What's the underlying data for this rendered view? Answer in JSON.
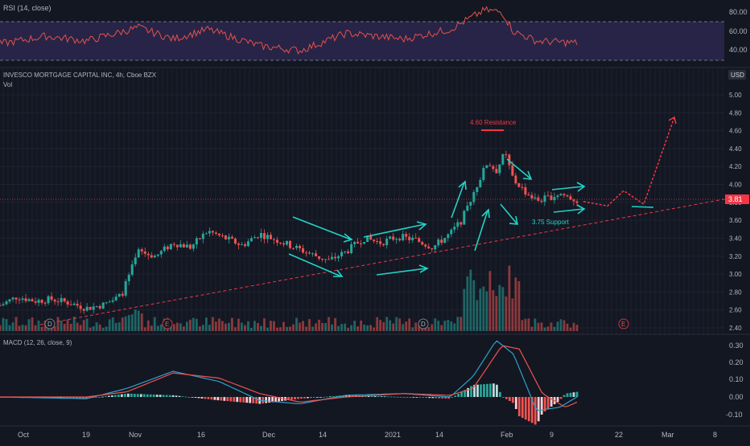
{
  "colors": {
    "background": "#131722",
    "grid": "#1f2330",
    "vgrid": "#2a2e39",
    "up": "#26a69a",
    "down": "#ef5350",
    "text": "#b2b5be",
    "rsi_line": "#e2524b",
    "rsi_band": "#3b2f66",
    "cyan": "#22d3c5",
    "red_annotation": "#f23645",
    "macd": "#2ea0c9",
    "signal": "#ef5350",
    "price_tag": "#f23645"
  },
  "rsi_panel": {
    "label": "RSI (14, close)",
    "ticks": [
      "80.00",
      "60.00",
      "40.00"
    ],
    "levels": [
      70,
      30
    ]
  },
  "price_panel": {
    "title": "INVESCO MORTGAGE CAPITAL INC, 4h, Cboe BZX",
    "vol_label": "Vol",
    "currency": "USD",
    "current_price": "3.81",
    "resistance_label": "4.60 Resistance",
    "support_label": "3.75 Support",
    "event_markers": [
      "D",
      "E",
      "D",
      "E"
    ],
    "ticks": [
      "5.00",
      "4.80",
      "4.60",
      "4.40",
      "4.20",
      "4.00",
      "3.80",
      "3.60",
      "3.40",
      "3.20",
      "3.00",
      "2.80",
      "2.60",
      "2.40"
    ]
  },
  "macd_panel": {
    "label": "MACD (12, 26, close, 9)",
    "ticks": [
      "0.30",
      "0.20",
      "0.10",
      "0.00",
      "-0.10"
    ]
  },
  "time_axis": [
    "Oct",
    "19",
    "Nov",
    "16",
    "Dec",
    "14",
    "2021",
    "14",
    "Feb",
    "9",
    "22",
    "Mar",
    "8"
  ],
  "chart_data": {
    "type": "candlestick",
    "title": "INVESCO MORTGAGE CAPITAL INC, 4h, Cboe BZX",
    "y_range": [
      2.4,
      5.1
    ],
    "rsi_range": [
      30,
      85
    ],
    "macd_range": [
      -0.13,
      0.35
    ],
    "current_price": 3.81,
    "resistance": 4.6,
    "support": 3.75,
    "close_path": [
      [
        0,
        2.65
      ],
      [
        0.03,
        2.75
      ],
      [
        0.06,
        2.7
      ],
      [
        0.09,
        2.72
      ],
      [
        0.12,
        2.68
      ],
      [
        0.15,
        2.62
      ],
      [
        0.18,
        2.66
      ],
      [
        0.21,
        2.76
      ],
      [
        0.24,
        3.25
      ],
      [
        0.27,
        3.2
      ],
      [
        0.3,
        3.35
      ],
      [
        0.33,
        3.3
      ],
      [
        0.36,
        3.48
      ],
      [
        0.39,
        3.4
      ],
      [
        0.42,
        3.32
      ],
      [
        0.45,
        3.45
      ],
      [
        0.48,
        3.38
      ],
      [
        0.51,
        3.3
      ],
      [
        0.54,
        3.22
      ],
      [
        0.57,
        3.15
      ],
      [
        0.6,
        3.25
      ],
      [
        0.63,
        3.4
      ],
      [
        0.66,
        3.35
      ],
      [
        0.69,
        3.42
      ],
      [
        0.72,
        3.38
      ],
      [
        0.75,
        3.3
      ],
      [
        0.78,
        3.45
      ],
      [
        0.8,
        3.6
      ],
      [
        0.82,
        3.9
      ],
      [
        0.845,
        4.25
      ],
      [
        0.86,
        4.15
      ],
      [
        0.875,
        4.35
      ],
      [
        0.89,
        4.05
      ],
      [
        0.91,
        3.92
      ],
      [
        0.93,
        3.82
      ],
      [
        0.95,
        3.85
      ],
      [
        0.97,
        3.9
      ],
      [
        1.0,
        3.82
      ]
    ],
    "rsi_path": [
      [
        0,
        47
      ],
      [
        0.08,
        55
      ],
      [
        0.15,
        50
      ],
      [
        0.24,
        64
      ],
      [
        0.3,
        52
      ],
      [
        0.36,
        62
      ],
      [
        0.45,
        45
      ],
      [
        0.52,
        40
      ],
      [
        0.6,
        58
      ],
      [
        0.7,
        52
      ],
      [
        0.78,
        62
      ],
      [
        0.84,
        82
      ],
      [
        0.87,
        80
      ],
      [
        0.89,
        60
      ],
      [
        0.93,
        50
      ],
      [
        1.0,
        48
      ]
    ],
    "macd_path": [
      [
        0,
        0.0
      ],
      [
        0.15,
        -0.01
      ],
      [
        0.22,
        0.05
      ],
      [
        0.3,
        0.15
      ],
      [
        0.38,
        0.09
      ],
      [
        0.45,
        -0.02
      ],
      [
        0.52,
        -0.04
      ],
      [
        0.6,
        0.01
      ],
      [
        0.7,
        0.02
      ],
      [
        0.78,
        0.0
      ],
      [
        0.82,
        0.12
      ],
      [
        0.86,
        0.33
      ],
      [
        0.89,
        0.25
      ],
      [
        0.93,
        -0.08
      ],
      [
        0.97,
        -0.06
      ],
      [
        1.0,
        0.0
      ]
    ],
    "signal_path": [
      [
        0,
        0.0
      ],
      [
        0.15,
        0.0
      ],
      [
        0.22,
        0.03
      ],
      [
        0.3,
        0.14
      ],
      [
        0.38,
        0.11
      ],
      [
        0.45,
        0.02
      ],
      [
        0.52,
        -0.03
      ],
      [
        0.6,
        0.0
      ],
      [
        0.7,
        0.02
      ],
      [
        0.78,
        0.01
      ],
      [
        0.82,
        0.05
      ],
      [
        0.87,
        0.3
      ],
      [
        0.9,
        0.28
      ],
      [
        0.94,
        0.02
      ],
      [
        0.98,
        -0.06
      ],
      [
        1.0,
        -0.03
      ]
    ],
    "forecast_path": [
      [
        3.81
      ],
      [
        3.76
      ],
      [
        3.93
      ],
      [
        3.78
      ],
      [
        4.75
      ]
    ]
  }
}
